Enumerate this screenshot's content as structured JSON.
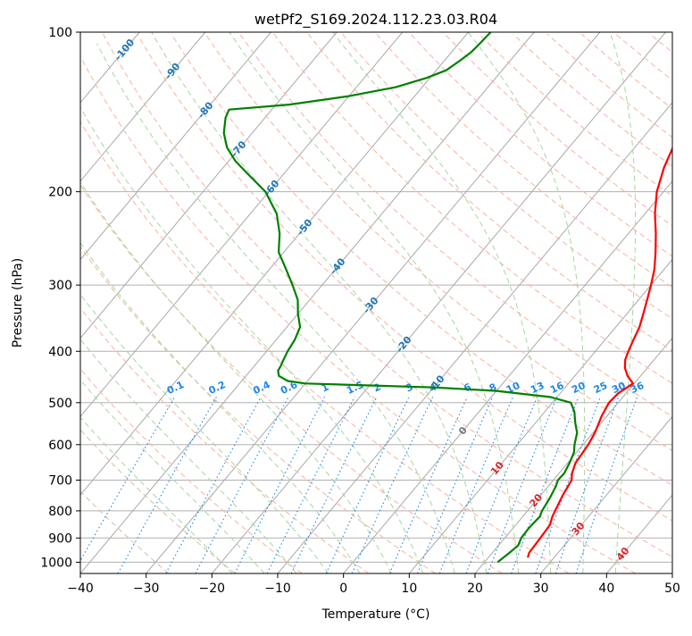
{
  "chart_data": {
    "type": "line",
    "title": "wetPf2_S169.2024.112.23.03.R04",
    "xlabel": "Temperature (°C)",
    "ylabel": "Pressure (hPa)",
    "xlim": [
      -40,
      50
    ],
    "ylim": [
      1050,
      100
    ],
    "y_scale": "log",
    "x_ticks": [
      "−40",
      "−30",
      "−20",
      "−10",
      "0",
      "10",
      "20",
      "30",
      "40",
      "50"
    ],
    "y_ticks": [
      {
        "p": 100,
        "label": "100"
      },
      {
        "p": 200,
        "label": "200"
      },
      {
        "p": 300,
        "label": "300"
      },
      {
        "p": 400,
        "label": "400"
      },
      {
        "p": 500,
        "label": "500"
      },
      {
        "p": 600,
        "label": "600"
      },
      {
        "p": 700,
        "label": "700"
      },
      {
        "p": 800,
        "label": "800"
      },
      {
        "p": 900,
        "label": "900"
      },
      {
        "p": 1000,
        "label": "1000"
      }
    ],
    "grid": true,
    "skew_t": true,
    "isotherm_labels": [
      "-100",
      "-90",
      "-80",
      "-70",
      "-60",
      "-50",
      "-40",
      "-30",
      "-20",
      "-10",
      "0",
      "10",
      "20",
      "30",
      "40"
    ],
    "mixing_ratio_labels": [
      "0.1",
      "0.2",
      "0.4",
      "0.6",
      "1",
      "1.5",
      "2",
      "3",
      "4",
      "6",
      "8",
      "10",
      "13",
      "16",
      "20",
      "25",
      "30",
      "36"
    ],
    "series": [
      {
        "name": "",
        "color": "#ff0000",
        "points": [
          [
            26.0,
            980
          ],
          [
            25.6,
            960
          ],
          [
            25.4,
            900
          ],
          [
            25.2,
            850
          ],
          [
            24.5,
            820
          ],
          [
            24.2,
            800
          ],
          [
            23.4,
            750
          ],
          [
            22.8,
            700
          ],
          [
            22.0,
            680
          ],
          [
            21.2,
            650
          ],
          [
            20.8,
            600
          ],
          [
            20.3,
            570
          ],
          [
            19.2,
            530
          ],
          [
            18.6,
            500
          ],
          [
            18.8,
            480
          ],
          [
            19.8,
            460
          ],
          [
            18.0,
            445
          ],
          [
            16.6,
            430
          ],
          [
            15.6,
            415
          ],
          [
            15.0,
            400
          ],
          [
            14.3,
            380
          ],
          [
            13.6,
            360
          ],
          [
            12.5,
            340
          ],
          [
            11.3,
            320
          ],
          [
            10.0,
            300
          ],
          [
            8.5,
            280
          ],
          [
            6.5,
            260
          ],
          [
            4.2,
            240
          ],
          [
            1.5,
            220
          ],
          [
            -1.0,
            200
          ],
          [
            -3.0,
            180
          ],
          [
            -4.2,
            165
          ],
          [
            -4.8,
            155
          ],
          [
            -5.6,
            145
          ],
          [
            -6.7,
            135
          ],
          [
            -7.9,
            125
          ],
          [
            -9.5,
            115
          ],
          [
            -10.3,
            110
          ],
          [
            -10.9,
            105
          ],
          [
            -11.9,
            100
          ]
        ]
      },
      {
        "name": "",
        "color": "#008000",
        "points": [
          [
            22.0,
            1000
          ],
          [
            22.6,
            960
          ],
          [
            23.0,
            930
          ],
          [
            22.5,
            900
          ],
          [
            22.4,
            860
          ],
          [
            22.5,
            840
          ],
          [
            22.6,
            820
          ],
          [
            22.2,
            800
          ],
          [
            21.8,
            760
          ],
          [
            21.2,
            720
          ],
          [
            20.7,
            700
          ],
          [
            20.8,
            680
          ],
          [
            20.3,
            650
          ],
          [
            19.6,
            620
          ],
          [
            18.7,
            600
          ],
          [
            17.6,
            570
          ],
          [
            16.0,
            545
          ],
          [
            14.5,
            520
          ],
          [
            12.8,
            500
          ],
          [
            9.0,
            488
          ],
          [
            0.0,
            475
          ],
          [
            -10.0,
            468
          ],
          [
            -20.0,
            464
          ],
          [
            -30.0,
            460
          ],
          [
            -33.0,
            455
          ],
          [
            -35.0,
            445
          ],
          [
            -35.8,
            435
          ],
          [
            -36.0,
            425
          ],
          [
            -36.2,
            420
          ],
          [
            -36.8,
            400
          ],
          [
            -37.2,
            380
          ],
          [
            -38.0,
            360
          ],
          [
            -40.0,
            340
          ],
          [
            -41.8,
            320
          ],
          [
            -44.5,
            300
          ],
          [
            -47.5,
            280
          ],
          [
            -50.8,
            260
          ],
          [
            -53.0,
            240
          ],
          [
            -56.0,
            220
          ],
          [
            -60.5,
            200
          ],
          [
            -65.5,
            185
          ],
          [
            -69.0,
            175
          ],
          [
            -72.0,
            165
          ],
          [
            -74.3,
            155
          ],
          [
            -76.0,
            145
          ],
          [
            -76.5,
            140
          ],
          [
            -68.0,
            137
          ],
          [
            -60.0,
            132
          ],
          [
            -54.0,
            127
          ],
          [
            -50.5,
            122
          ],
          [
            -48.5,
            118
          ],
          [
            -47.6,
            113
          ],
          [
            -47.0,
            109
          ],
          [
            -46.8,
            105
          ],
          [
            -46.6,
            100
          ]
        ]
      }
    ]
  }
}
